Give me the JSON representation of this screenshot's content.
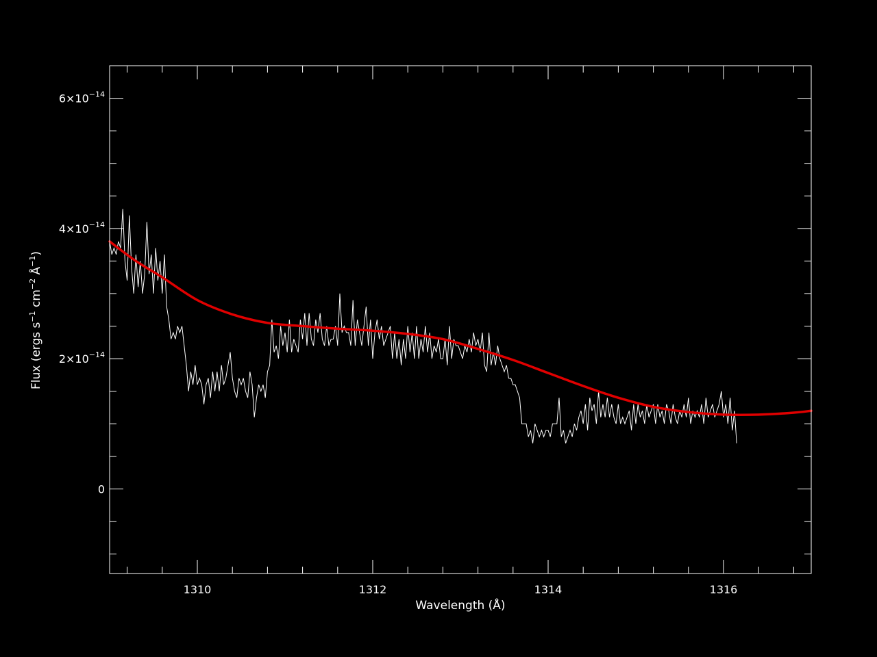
{
  "chart_data": {
    "type": "line",
    "xlabel": "Wavelength (Å)",
    "ylabel": {
      "prefix": "Flux (ergs s",
      "exp1": "−1",
      "mid": " cm",
      "exp2": "−2",
      "mid2": " Å",
      "exp3": "−1",
      "suffix": ")"
    },
    "xlim": [
      1309.0,
      1317.0
    ],
    "ylim": [
      -1.3e-14,
      6.5e-14
    ],
    "x_ticks": [
      {
        "value": 1310,
        "label": "1310"
      },
      {
        "value": 1312,
        "label": "1312"
      },
      {
        "value": 1314,
        "label": "1314"
      },
      {
        "value": 1316,
        "label": "1316"
      }
    ],
    "y_ticks": [
      {
        "value": 0,
        "label": "0",
        "mantissa": "",
        "exponent": ""
      },
      {
        "value": 2e-14,
        "label": "",
        "mantissa": "2×10",
        "exponent": "−14"
      },
      {
        "value": 4e-14,
        "label": "",
        "mantissa": "4×10",
        "exponent": "−14"
      },
      {
        "value": 6e-14,
        "label": "",
        "mantissa": "6×10",
        "exponent": "−14"
      }
    ],
    "x_minor_step": 0.4,
    "y_minor_step": 5e-15,
    "colors": {
      "background": "#000000",
      "axes": "#ffffff",
      "spectrum": "#ffffff",
      "fit": "#e00000"
    },
    "series": [
      {
        "style": "spectrum",
        "x_start": 1309.0,
        "x_step": 0.025,
        "y_units": 1e-14,
        "y": [
          3.8,
          3.6,
          3.7,
          3.6,
          3.8,
          3.7,
          4.3,
          3.5,
          3.2,
          4.2,
          3.4,
          3.0,
          3.6,
          3.1,
          3.5,
          3.0,
          3.3,
          4.1,
          3.3,
          3.6,
          3.0,
          3.7,
          3.2,
          3.5,
          3.0,
          3.6,
          2.8,
          2.6,
          2.3,
          2.4,
          2.3,
          2.5,
          2.4,
          2.5,
          2.2,
          1.9,
          1.5,
          1.8,
          1.6,
          1.9,
          1.6,
          1.7,
          1.6,
          1.3,
          1.6,
          1.7,
          1.4,
          1.8,
          1.5,
          1.8,
          1.5,
          1.9,
          1.6,
          1.7,
          1.9,
          2.1,
          1.7,
          1.5,
          1.4,
          1.7,
          1.6,
          1.7,
          1.5,
          1.4,
          1.8,
          1.6,
          1.1,
          1.4,
          1.6,
          1.5,
          1.6,
          1.4,
          1.8,
          1.9,
          2.6,
          2.1,
          2.2,
          2.0,
          2.5,
          2.2,
          2.4,
          2.1,
          2.6,
          2.1,
          2.3,
          2.2,
          2.1,
          2.6,
          2.3,
          2.7,
          2.2,
          2.7,
          2.3,
          2.2,
          2.6,
          2.4,
          2.7,
          2.3,
          2.2,
          2.5,
          2.2,
          2.3,
          2.3,
          2.5,
          2.2,
          3.0,
          2.4,
          2.5,
          2.4,
          2.4,
          2.2,
          2.9,
          2.2,
          2.6,
          2.4,
          2.2,
          2.5,
          2.8,
          2.2,
          2.6,
          2.0,
          2.4,
          2.6,
          2.3,
          2.5,
          2.2,
          2.3,
          2.4,
          2.5,
          2.0,
          2.4,
          2.0,
          2.3,
          1.9,
          2.3,
          2.0,
          2.5,
          2.1,
          2.4,
          2.0,
          2.5,
          2.0,
          2.3,
          2.1,
          2.5,
          2.1,
          2.4,
          2.0,
          2.2,
          2.1,
          2.3,
          2.0,
          2.0,
          2.3,
          1.9,
          2.5,
          2.0,
          2.3,
          2.2,
          2.2,
          2.1,
          2.0,
          2.2,
          2.1,
          2.3,
          2.1,
          2.4,
          2.2,
          2.3,
          2.1,
          2.4,
          1.9,
          1.8,
          2.4,
          1.9,
          2.1,
          1.9,
          2.2,
          2.0,
          1.9,
          1.8,
          1.9,
          1.7,
          1.7,
          1.6,
          1.6,
          1.5,
          1.4,
          1.0,
          1.0,
          1.0,
          0.8,
          0.9,
          0.7,
          1.0,
          0.9,
          0.8,
          0.9,
          0.8,
          0.9,
          0.9,
          0.8,
          1.0,
          1.0,
          1.0,
          1.4,
          0.8,
          0.9,
          0.7,
          0.8,
          0.9,
          0.8,
          1.0,
          0.9,
          1.1,
          1.2,
          1.0,
          1.3,
          0.9,
          1.4,
          1.2,
          1.3,
          1.0,
          1.5,
          1.1,
          1.3,
          1.1,
          1.4,
          1.1,
          1.3,
          1.1,
          1.0,
          1.3,
          1.0,
          1.1,
          1.0,
          1.1,
          1.2,
          0.9,
          1.3,
          1.0,
          1.3,
          1.1,
          1.2,
          1.0,
          1.3,
          1.1,
          1.2,
          1.3,
          1.0,
          1.3,
          1.1,
          1.2,
          1.0,
          1.3,
          1.2,
          1.0,
          1.3,
          1.1,
          1.0,
          1.2,
          1.1,
          1.3,
          1.1,
          1.4,
          1.0,
          1.2,
          1.1,
          1.2,
          1.1,
          1.3,
          1.0,
          1.4,
          1.1,
          1.2,
          1.3,
          1.1,
          1.2,
          1.3,
          1.5,
          1.1,
          1.3,
          1.0,
          1.4,
          0.9,
          1.2,
          0.7
        ]
      },
      {
        "style": "fit",
        "x": [
          1309.0,
          1309.3,
          1309.6,
          1310.0,
          1310.4,
          1310.8,
          1311.2,
          1311.6,
          1312.0,
          1312.4,
          1312.8,
          1313.2,
          1313.6,
          1314.0,
          1314.4,
          1314.8,
          1315.2,
          1315.6,
          1316.0,
          1316.4,
          1316.8,
          1317.0
        ],
        "y_units": 1e-14,
        "y": [
          3.8,
          3.5,
          3.25,
          2.9,
          2.68,
          2.55,
          2.5,
          2.46,
          2.43,
          2.38,
          2.3,
          2.15,
          1.98,
          1.78,
          1.58,
          1.4,
          1.26,
          1.18,
          1.14,
          1.14,
          1.17,
          1.2
        ]
      }
    ]
  }
}
